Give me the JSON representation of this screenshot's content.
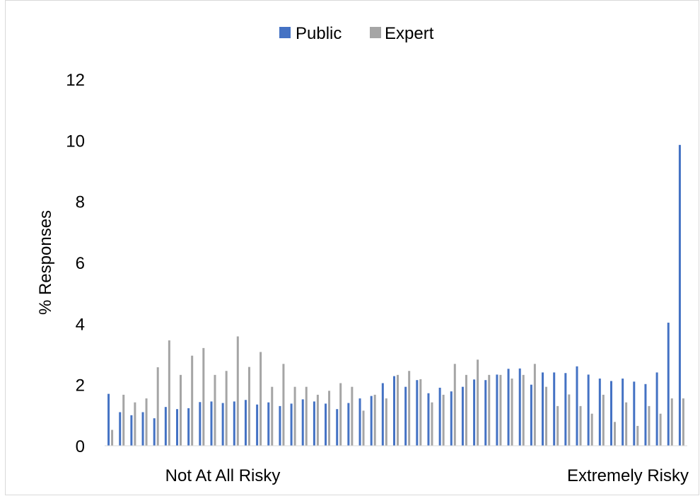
{
  "chart_data": {
    "type": "bar",
    "ylabel": "% Responses",
    "ylim": [
      0,
      12
    ],
    "yticks": [
      0,
      2,
      4,
      6,
      8,
      10,
      12
    ],
    "x_end_labels": [
      "Not At All Risky",
      "Extremely Risky"
    ],
    "legend_position": "top",
    "grid": false,
    "series": [
      {
        "name": "Public",
        "color": "#4472c4",
        "values": [
          1.7,
          1.1,
          1.0,
          1.1,
          0.9,
          1.27,
          1.2,
          1.23,
          1.43,
          1.45,
          1.4,
          1.45,
          1.5,
          1.35,
          1.42,
          1.3,
          1.38,
          1.52,
          1.45,
          1.38,
          1.2,
          1.4,
          1.55,
          1.63,
          2.05,
          2.28,
          1.93,
          2.15,
          1.72,
          1.9,
          1.78,
          1.93,
          2.17,
          2.15,
          2.33,
          2.52,
          2.53,
          2.0,
          2.4,
          2.4,
          2.38,
          2.6,
          2.33,
          2.2,
          2.12,
          2.2,
          2.1,
          2.02,
          2.4,
          4.03,
          9.85
        ]
      },
      {
        "name": "Expert",
        "color": "#a5a5a5",
        "values": [
          0.52,
          1.67,
          1.42,
          1.55,
          2.57,
          3.45,
          2.32,
          2.95,
          3.2,
          2.32,
          2.45,
          3.58,
          2.58,
          3.07,
          1.93,
          2.68,
          1.93,
          1.93,
          1.67,
          1.8,
          2.05,
          1.93,
          1.15,
          1.67,
          1.55,
          2.32,
          2.45,
          2.18,
          1.42,
          1.67,
          2.68,
          2.32,
          2.82,
          2.32,
          2.32,
          2.2,
          2.32,
          2.68,
          1.93,
          1.3,
          1.68,
          1.3,
          1.05,
          1.67,
          0.78,
          1.42,
          0.65,
          1.3,
          1.05,
          1.55,
          1.55
        ]
      }
    ]
  }
}
